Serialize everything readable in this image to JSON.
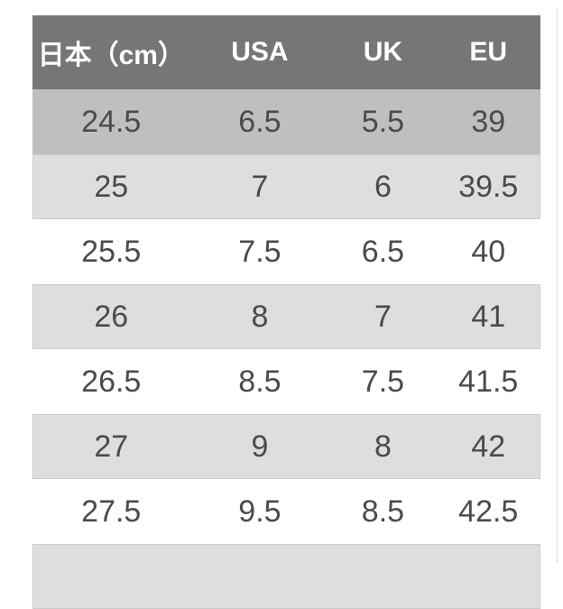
{
  "table": {
    "columns": [
      {
        "label": "日本（cm）"
      },
      {
        "label": "USA"
      },
      {
        "label": "UK"
      },
      {
        "label": "EU"
      }
    ],
    "rows": [
      {
        "jp": "24.5",
        "usa": "6.5",
        "uk": "5.5",
        "eu": "39",
        "highlighted": true
      },
      {
        "jp": "25",
        "usa": "7",
        "uk": "6",
        "eu": "39.5",
        "highlighted": false
      },
      {
        "jp": "25.5",
        "usa": "7.5",
        "uk": "6.5",
        "eu": "40",
        "highlighted": false
      },
      {
        "jp": "26",
        "usa": "8",
        "uk": "7",
        "eu": "41",
        "highlighted": false
      },
      {
        "jp": "26.5",
        "usa": "8.5",
        "uk": "7.5",
        "eu": "41.5",
        "highlighted": false
      },
      {
        "jp": "27",
        "usa": "9",
        "uk": "8",
        "eu": "42",
        "highlighted": false
      },
      {
        "jp": "27.5",
        "usa": "9.5",
        "uk": "8.5",
        "eu": "42.5",
        "highlighted": false
      }
    ],
    "partial_row_visible_at_bottom": true,
    "colors": {
      "header_bg": "#767676",
      "header_text": "#ffffff",
      "highlight_row_bg": "#bfbfbf",
      "alt_row_bg": "#dedede",
      "white_row_bg": "#ffffff",
      "row_text": "#4b4b4b",
      "row_border": "#cbcbcb",
      "right_line": "#dcdcdc"
    }
  },
  "chart_data": {
    "type": "table",
    "title": "",
    "columns": [
      "日本（cm）",
      "USA",
      "UK",
      "EU"
    ],
    "rows": [
      [
        "24.5",
        "6.5",
        "5.5",
        "39"
      ],
      [
        "25",
        "7",
        "6",
        "39.5"
      ],
      [
        "25.5",
        "7.5",
        "6.5",
        "40"
      ],
      [
        "26",
        "8",
        "7",
        "41"
      ],
      [
        "26.5",
        "8.5",
        "7.5",
        "41.5"
      ],
      [
        "27",
        "9",
        "8",
        "42"
      ],
      [
        "27.5",
        "9.5",
        "8.5",
        "42.5"
      ]
    ],
    "highlighted_row_index": 0
  }
}
